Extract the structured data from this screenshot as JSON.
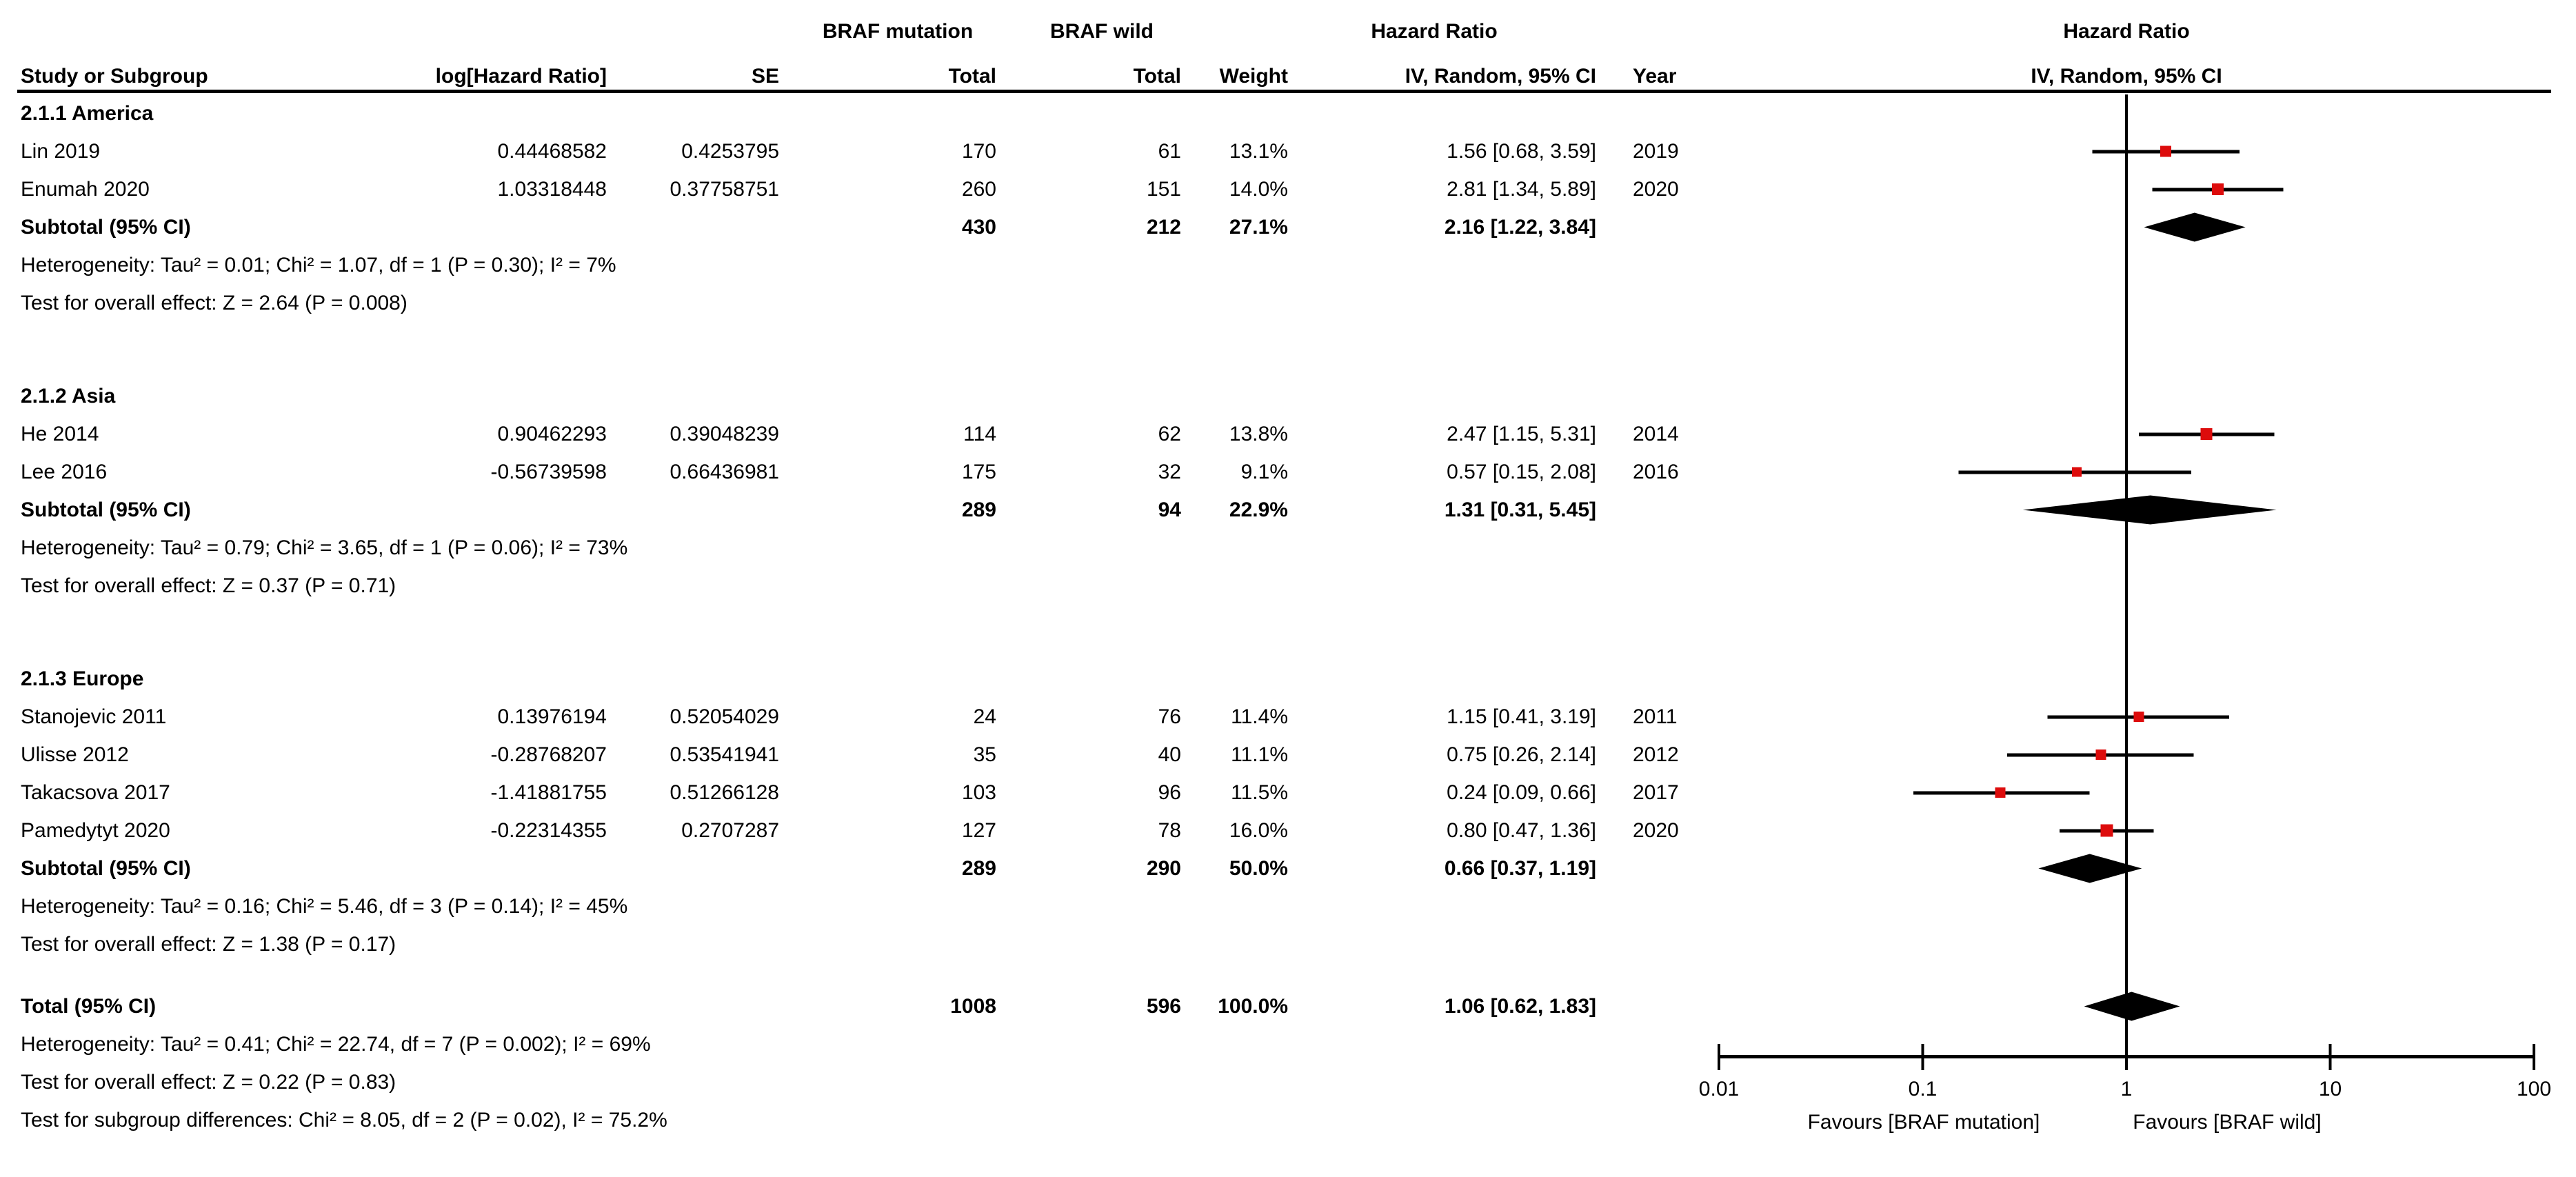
{
  "colors": {
    "marker_red": "#dd0c0c",
    "line_black": "#000000",
    "text": "#000000",
    "background": "#ffffff"
  },
  "table_header": {
    "group1_line1": "BRAF mutation",
    "group2_line1": "BRAF wild",
    "effect_line1": "Hazard Ratio",
    "col_study": "Study or Subgroup",
    "col_loghr": "log[Hazard Ratio]",
    "col_se": "SE",
    "col_total1": "Total",
    "col_total2": "Total",
    "col_weight": "Weight",
    "col_ci": "IV, Random, 95% CI",
    "col_year": "Year",
    "plot_header_line1": "Hazard Ratio",
    "plot_header_line2": "IV, Random, 95% CI"
  },
  "axis": {
    "tick_labels": [
      "0.01",
      "0.1",
      "1",
      "10",
      "100"
    ],
    "tick_values": [
      0.01,
      0.1,
      1,
      10,
      100
    ],
    "favours_left": "Favours [BRAF mutation]",
    "favours_right": "Favours [BRAF wild]"
  },
  "chart_data": {
    "type": "forest",
    "scale": "log10",
    "xlim": [
      0.01,
      100
    ],
    "effect_measure": "Hazard Ratio, IV, Random, 95% CI",
    "groups": [
      {
        "label": "2.1.1 America",
        "studies": [
          {
            "study": "Lin 2019",
            "log_hr": "0.44468582",
            "se": "0.4253795",
            "total_mutation": "170",
            "total_wild": "61",
            "weight": "13.1%",
            "weight_pct": 13.1,
            "ci_text": "1.56 [0.68, 3.59]",
            "hr": 1.56,
            "ci_low": 0.68,
            "ci_high": 3.59,
            "year": "2019"
          },
          {
            "study": "Enumah 2020",
            "log_hr": "1.03318448",
            "se": "0.37758751",
            "total_mutation": "260",
            "total_wild": "151",
            "weight": "14.0%",
            "weight_pct": 14.0,
            "ci_text": "2.81 [1.34, 5.89]",
            "hr": 2.81,
            "ci_low": 1.34,
            "ci_high": 5.89,
            "year": "2020"
          }
        ],
        "subtotal": {
          "label": "Subtotal (95% CI)",
          "total_mutation": "430",
          "total_wild": "212",
          "weight": "27.1%",
          "ci_text": "2.16 [1.22, 3.84]",
          "hr": 2.16,
          "ci_low": 1.22,
          "ci_high": 3.84
        },
        "heterogeneity": "Heterogeneity: Tau² = 0.01; Chi² = 1.07, df = 1 (P = 0.30); I² = 7%",
        "overall_effect": "Test for overall effect: Z = 2.64 (P = 0.008)"
      },
      {
        "label": "2.1.2 Asia",
        "studies": [
          {
            "study": "He 2014",
            "log_hr": "0.90462293",
            "se": "0.39048239",
            "total_mutation": "114",
            "total_wild": "62",
            "weight": "13.8%",
            "weight_pct": 13.8,
            "ci_text": "2.47 [1.15, 5.31]",
            "hr": 2.47,
            "ci_low": 1.15,
            "ci_high": 5.31,
            "year": "2014"
          },
          {
            "study": "Lee 2016",
            "log_hr": "-0.56739598",
            "se": "0.66436981",
            "total_mutation": "175",
            "total_wild": "32",
            "weight": "9.1%",
            "weight_pct": 9.1,
            "ci_text": "0.57 [0.15, 2.08]",
            "hr": 0.57,
            "ci_low": 0.15,
            "ci_high": 2.08,
            "year": "2016"
          }
        ],
        "subtotal": {
          "label": "Subtotal (95% CI)",
          "total_mutation": "289",
          "total_wild": "94",
          "weight": "22.9%",
          "ci_text": "1.31 [0.31, 5.45]",
          "hr": 1.31,
          "ci_low": 0.31,
          "ci_high": 5.45
        },
        "heterogeneity": "Heterogeneity: Tau² = 0.79; Chi² = 3.65, df = 1 (P = 0.06); I² = 73%",
        "overall_effect": "Test for overall effect: Z = 0.37 (P = 0.71)"
      },
      {
        "label": "2.1.3 Europe",
        "studies": [
          {
            "study": "Stanojevic 2011",
            "log_hr": "0.13976194",
            "se": "0.52054029",
            "total_mutation": "24",
            "total_wild": "76",
            "weight": "11.4%",
            "weight_pct": 11.4,
            "ci_text": "1.15 [0.41, 3.19]",
            "hr": 1.15,
            "ci_low": 0.41,
            "ci_high": 3.19,
            "year": "2011"
          },
          {
            "study": "Ulisse 2012",
            "log_hr": "-0.28768207",
            "se": "0.53541941",
            "total_mutation": "35",
            "total_wild": "40",
            "weight": "11.1%",
            "weight_pct": 11.1,
            "ci_text": "0.75 [0.26, 2.14]",
            "hr": 0.75,
            "ci_low": 0.26,
            "ci_high": 2.14,
            "year": "2012"
          },
          {
            "study": "Takacsova 2017",
            "log_hr": "-1.41881755",
            "se": "0.51266128",
            "total_mutation": "103",
            "total_wild": "96",
            "weight": "11.5%",
            "weight_pct": 11.5,
            "ci_text": "0.24 [0.09, 0.66]",
            "hr": 0.24,
            "ci_low": 0.09,
            "ci_high": 0.66,
            "year": "2017"
          },
          {
            "study": "Pamedytyt 2020",
            "log_hr": "-0.22314355",
            "se": "0.2707287",
            "total_mutation": "127",
            "total_wild": "78",
            "weight": "16.0%",
            "weight_pct": 16.0,
            "ci_text": "0.80 [0.47, 1.36]",
            "hr": 0.8,
            "ci_low": 0.47,
            "ci_high": 1.36,
            "year": "2020"
          }
        ],
        "subtotal": {
          "label": "Subtotal (95% CI)",
          "total_mutation": "289",
          "total_wild": "290",
          "weight": "50.0%",
          "ci_text": "0.66 [0.37, 1.19]",
          "hr": 0.66,
          "ci_low": 0.37,
          "ci_high": 1.19
        },
        "heterogeneity": "Heterogeneity: Tau² = 0.16; Chi² = 5.46, df = 3 (P = 0.14); I² = 45%",
        "overall_effect": "Test for overall effect: Z = 1.38 (P = 0.17)"
      }
    ],
    "total": {
      "label": "Total (95% CI)",
      "total_mutation": "1008",
      "total_wild": "596",
      "weight": "100.0%",
      "ci_text": "1.06 [0.62, 1.83]",
      "hr": 1.06,
      "ci_low": 0.62,
      "ci_high": 1.83
    },
    "total_heterogeneity": "Heterogeneity: Tau² = 0.41; Chi² = 22.74, df = 7 (P = 0.002); I² = 69%",
    "total_overall_effect": "Test for overall effect: Z = 0.22 (P = 0.83)",
    "subgroup_differences": "Test for subgroup differences: Chi² = 8.05, df = 2 (P = 0.02), I² = 75.2%"
  }
}
